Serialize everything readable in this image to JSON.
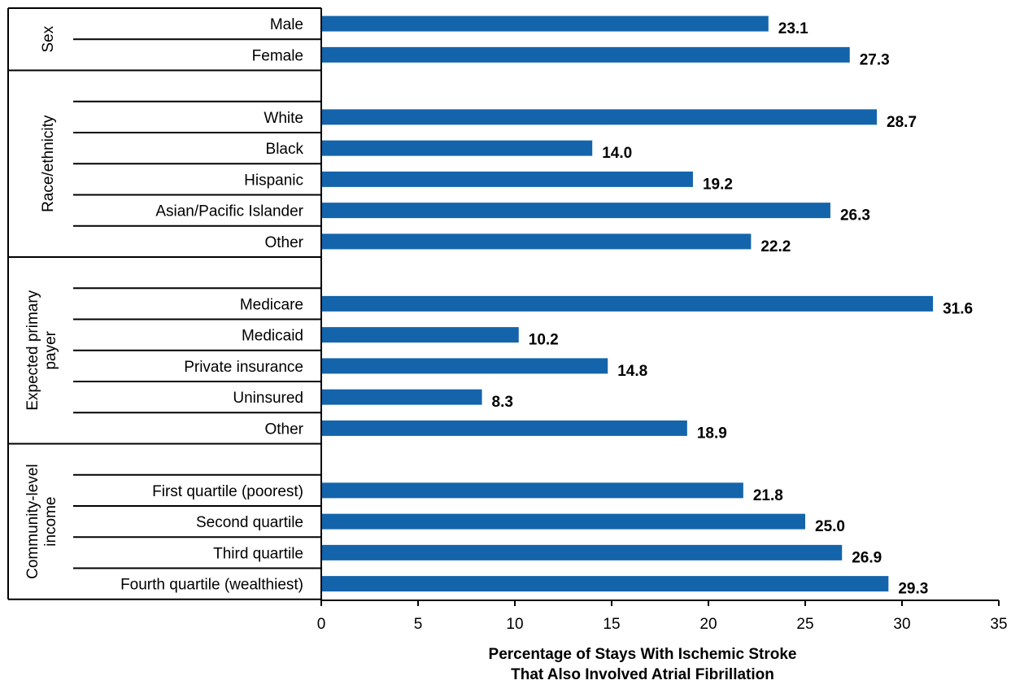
{
  "chart_data": {
    "type": "bar",
    "orientation": "horizontal",
    "xlabel": [
      "Percentage of Stays With Ischemic Stroke",
      "That Also Involved Atrial Fibrillation"
    ],
    "xlim": [
      0,
      35
    ],
    "xticks": [
      0,
      5,
      10,
      15,
      20,
      25,
      30,
      35
    ],
    "bar_color": "#1464ab",
    "groups": [
      {
        "label": [
          "Sex"
        ],
        "items": [
          {
            "category": "Male",
            "value": 23.1,
            "label": "23.1"
          },
          {
            "category": "Female",
            "value": 27.3,
            "label": "27.3"
          }
        ]
      },
      {
        "label": [
          "Race/ethnicity"
        ],
        "items": [
          {
            "category": "White",
            "value": 28.7,
            "label": "28.7"
          },
          {
            "category": "Black",
            "value": 14.0,
            "label": "14.0"
          },
          {
            "category": "Hispanic",
            "value": 19.2,
            "label": "19.2"
          },
          {
            "category": "Asian/Pacific Islander",
            "value": 26.3,
            "label": "26.3"
          },
          {
            "category": "Other",
            "value": 22.2,
            "label": "22.2"
          }
        ]
      },
      {
        "label": [
          "Expected primary",
          "payer"
        ],
        "items": [
          {
            "category": "Medicare",
            "value": 31.6,
            "label": "31.6"
          },
          {
            "category": "Medicaid",
            "value": 10.2,
            "label": "10.2"
          },
          {
            "category": "Private insurance",
            "value": 14.8,
            "label": "14.8"
          },
          {
            "category": "Uninsured",
            "value": 8.3,
            "label": "8.3"
          },
          {
            "category": "Other",
            "value": 18.9,
            "label": "18.9"
          }
        ]
      },
      {
        "label": [
          "Community-level",
          "income"
        ],
        "items": [
          {
            "category": "First quartile (poorest)",
            "value": 21.8,
            "label": "21.8"
          },
          {
            "category": "Second quartile",
            "value": 25.0,
            "label": "25.0"
          },
          {
            "category": "Third quartile",
            "value": 26.9,
            "label": "26.9"
          },
          {
            "category": "Fourth quartile (wealthiest)",
            "value": 29.3,
            "label": "29.3"
          }
        ]
      }
    ]
  }
}
